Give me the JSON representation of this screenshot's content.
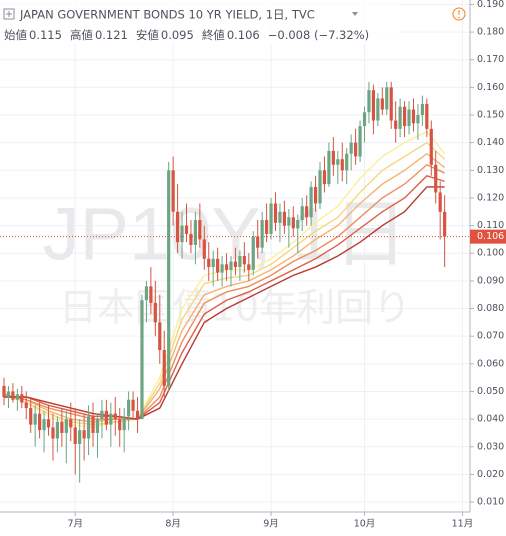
{
  "chart_data": {
    "type": "candlestick",
    "title": "JAPAN GOVERNMENT BONDS 10 YR YIELD, 1日, TVC",
    "header": {
      "open_label": "始値",
      "open": 0.115,
      "high_label": "高値",
      "high": 0.121,
      "low_label": "安値",
      "low": 0.095,
      "close_label": "終値",
      "close": 0.106,
      "change": "−0.008 (−7.32%)"
    },
    "watermark": {
      "symbol": "JP10Y, 1日",
      "description": "日本国債10年利回り"
    },
    "up_color": "#6ba583",
    "down_color": "#d75442",
    "last_color": "#e0513f",
    "grid": true,
    "open": [
      0.052,
      0.048,
      0.05,
      0.047,
      0.049,
      0.046,
      0.044,
      0.038,
      0.042,
      0.036,
      0.04,
      0.037,
      0.033,
      0.039,
      0.035,
      0.04,
      0.037,
      0.031,
      0.036,
      0.033,
      0.041,
      0.035,
      0.04,
      0.043,
      0.038,
      0.042,
      0.04,
      0.036,
      0.041,
      0.047,
      0.043,
      0.04,
      0.083,
      0.088,
      0.082,
      0.075,
      0.065,
      0.052,
      0.13,
      0.115,
      0.104,
      0.11,
      0.107,
      0.103,
      0.112,
      0.105,
      0.098,
      0.095,
      0.098,
      0.093,
      0.096,
      0.094,
      0.097,
      0.095,
      0.099,
      0.096,
      0.094,
      0.106,
      0.102,
      0.112,
      0.107,
      0.118,
      0.111,
      0.115,
      0.11,
      0.113,
      0.109,
      0.112,
      0.117,
      0.113,
      0.124,
      0.118,
      0.13,
      0.125,
      0.137,
      0.132,
      0.134,
      0.13,
      0.136,
      0.14,
      0.135,
      0.146,
      0.151,
      0.159,
      0.148,
      0.156,
      0.152,
      0.16,
      0.148,
      0.145,
      0.153,
      0.146,
      0.152,
      0.147,
      0.15,
      0.154,
      0.145,
      0.132,
      0.122,
      0.115
    ],
    "high": [
      0.055,
      0.052,
      0.053,
      0.051,
      0.052,
      0.05,
      0.048,
      0.045,
      0.046,
      0.043,
      0.045,
      0.042,
      0.041,
      0.044,
      0.043,
      0.046,
      0.044,
      0.04,
      0.042,
      0.045,
      0.046,
      0.042,
      0.047,
      0.047,
      0.046,
      0.048,
      0.044,
      0.044,
      0.05,
      0.05,
      0.048,
      0.085,
      0.09,
      0.095,
      0.09,
      0.085,
      0.072,
      0.133,
      0.135,
      0.125,
      0.115,
      0.118,
      0.112,
      0.115,
      0.118,
      0.11,
      0.104,
      0.101,
      0.102,
      0.099,
      0.1,
      0.099,
      0.102,
      0.101,
      0.104,
      0.1,
      0.108,
      0.112,
      0.115,
      0.118,
      0.12,
      0.122,
      0.118,
      0.119,
      0.116,
      0.117,
      0.114,
      0.12,
      0.121,
      0.126,
      0.128,
      0.133,
      0.135,
      0.14,
      0.142,
      0.137,
      0.14,
      0.138,
      0.143,
      0.145,
      0.148,
      0.153,
      0.162,
      0.161,
      0.158,
      0.16,
      0.162,
      0.162,
      0.155,
      0.156,
      0.155,
      0.155,
      0.156,
      0.154,
      0.157,
      0.156,
      0.148,
      0.137,
      0.126,
      0.121
    ],
    "low": [
      0.045,
      0.044,
      0.046,
      0.043,
      0.044,
      0.04,
      0.035,
      0.03,
      0.033,
      0.028,
      0.034,
      0.025,
      0.028,
      0.03,
      0.024,
      0.032,
      0.02,
      0.017,
      0.025,
      0.027,
      0.03,
      0.026,
      0.033,
      0.036,
      0.03,
      0.034,
      0.03,
      0.028,
      0.036,
      0.04,
      0.035,
      0.04,
      0.075,
      0.078,
      0.07,
      0.06,
      0.048,
      0.05,
      0.11,
      0.1,
      0.098,
      0.104,
      0.1,
      0.096,
      0.102,
      0.094,
      0.09,
      0.088,
      0.09,
      0.088,
      0.09,
      0.088,
      0.092,
      0.09,
      0.093,
      0.09,
      0.092,
      0.098,
      0.1,
      0.104,
      0.105,
      0.108,
      0.104,
      0.107,
      0.102,
      0.106,
      0.1,
      0.108,
      0.11,
      0.11,
      0.115,
      0.116,
      0.122,
      0.124,
      0.128,
      0.125,
      0.126,
      0.125,
      0.13,
      0.132,
      0.133,
      0.14,
      0.147,
      0.143,
      0.146,
      0.15,
      0.15,
      0.145,
      0.14,
      0.142,
      0.142,
      0.143,
      0.144,
      0.141,
      0.146,
      0.142,
      0.128,
      0.118,
      0.105,
      0.095
    ],
    "close": [
      0.048,
      0.05,
      0.047,
      0.049,
      0.046,
      0.044,
      0.038,
      0.042,
      0.036,
      0.04,
      0.037,
      0.033,
      0.039,
      0.035,
      0.04,
      0.037,
      0.031,
      0.036,
      0.033,
      0.041,
      0.035,
      0.04,
      0.043,
      0.038,
      0.042,
      0.04,
      0.036,
      0.041,
      0.047,
      0.043,
      0.04,
      0.083,
      0.088,
      0.082,
      0.075,
      0.065,
      0.052,
      0.13,
      0.115,
      0.104,
      0.11,
      0.107,
      0.103,
      0.112,
      0.105,
      0.098,
      0.095,
      0.098,
      0.093,
      0.096,
      0.094,
      0.097,
      0.095,
      0.099,
      0.096,
      0.094,
      0.106,
      0.102,
      0.112,
      0.107,
      0.118,
      0.111,
      0.115,
      0.11,
      0.113,
      0.109,
      0.112,
      0.117,
      0.113,
      0.124,
      0.118,
      0.13,
      0.125,
      0.137,
      0.132,
      0.134,
      0.13,
      0.136,
      0.14,
      0.135,
      0.146,
      0.151,
      0.159,
      0.148,
      0.156,
      0.152,
      0.16,
      0.148,
      0.145,
      0.153,
      0.146,
      0.152,
      0.147,
      0.15,
      0.154,
      0.145,
      0.132,
      0.122,
      0.115,
      0.106
    ],
    "ribbon_x": [
      0,
      5,
      10,
      15,
      20,
      25,
      30,
      35,
      40,
      45,
      50,
      55,
      60,
      65,
      70,
      75,
      80,
      85,
      90,
      95,
      99
    ],
    "ribbons": [
      {
        "color": "#fbef9b",
        "values": [
          0.049,
          0.046,
          0.041,
          0.038,
          0.037,
          0.039,
          0.04,
          0.055,
          0.08,
          0.092,
          0.094,
          0.094,
          0.098,
          0.104,
          0.111,
          0.117,
          0.127,
          0.135,
          0.14,
          0.144,
          0.136
        ]
      },
      {
        "color": "#f8d67f",
        "values": [
          0.049,
          0.046,
          0.042,
          0.039,
          0.038,
          0.039,
          0.04,
          0.053,
          0.076,
          0.089,
          0.091,
          0.092,
          0.096,
          0.102,
          0.108,
          0.113,
          0.122,
          0.13,
          0.135,
          0.14,
          0.134
        ]
      },
      {
        "color": "#f4b36f",
        "values": [
          0.049,
          0.047,
          0.043,
          0.04,
          0.039,
          0.04,
          0.04,
          0.051,
          0.072,
          0.085,
          0.088,
          0.09,
          0.094,
          0.099,
          0.105,
          0.11,
          0.118,
          0.125,
          0.13,
          0.136,
          0.131
        ]
      },
      {
        "color": "#ee8d5e",
        "values": [
          0.049,
          0.047,
          0.044,
          0.042,
          0.04,
          0.04,
          0.04,
          0.048,
          0.068,
          0.082,
          0.086,
          0.088,
          0.092,
          0.097,
          0.101,
          0.106,
          0.113,
          0.12,
          0.125,
          0.132,
          0.129
        ]
      },
      {
        "color": "#dc5f48",
        "values": [
          0.048,
          0.048,
          0.045,
          0.043,
          0.041,
          0.041,
          0.04,
          0.046,
          0.064,
          0.078,
          0.083,
          0.086,
          0.09,
          0.094,
          0.098,
          0.103,
          0.109,
          0.115,
          0.12,
          0.128,
          0.126
        ]
      },
      {
        "color": "#b83a2e",
        "values": [
          0.048,
          0.048,
          0.046,
          0.044,
          0.042,
          0.041,
          0.04,
          0.044,
          0.06,
          0.075,
          0.08,
          0.084,
          0.088,
          0.092,
          0.095,
          0.099,
          0.104,
          0.11,
          0.115,
          0.124,
          0.124
        ]
      }
    ],
    "xlim": [
      -0.9,
      104.7
    ],
    "xticks": [
      {
        "value": 16,
        "label": "7月"
      },
      {
        "value": 38,
        "label": "8月"
      },
      {
        "value": 60,
        "label": "9月"
      },
      {
        "value": 81,
        "label": "10月"
      },
      {
        "value": 103,
        "label": "11月"
      }
    ],
    "ylim": [
      0.0064,
      0.1916
    ],
    "yticks": [
      {
        "value": 0.01,
        "label": "0.010"
      },
      {
        "value": 0.02,
        "label": "0.020"
      },
      {
        "value": 0.03,
        "label": "0.030"
      },
      {
        "value": 0.04,
        "label": "0.040"
      },
      {
        "value": 0.05,
        "label": "0.050"
      },
      {
        "value": 0.06,
        "label": "0.060"
      },
      {
        "value": 0.07,
        "label": "0.070"
      },
      {
        "value": 0.08,
        "label": "0.080"
      },
      {
        "value": 0.09,
        "label": "0.090"
      },
      {
        "value": 0.1,
        "label": "0.100"
      },
      {
        "value": 0.11,
        "label": "0.110"
      },
      {
        "value": 0.12,
        "label": "0.120"
      },
      {
        "value": 0.13,
        "label": "0.130"
      },
      {
        "value": 0.14,
        "label": "0.140"
      },
      {
        "value": 0.15,
        "label": "0.150"
      },
      {
        "value": 0.16,
        "label": "0.160"
      },
      {
        "value": 0.17,
        "label": "0.170"
      },
      {
        "value": 0.18,
        "label": "0.180"
      },
      {
        "value": 0.19,
        "label": "0.190"
      }
    ]
  }
}
